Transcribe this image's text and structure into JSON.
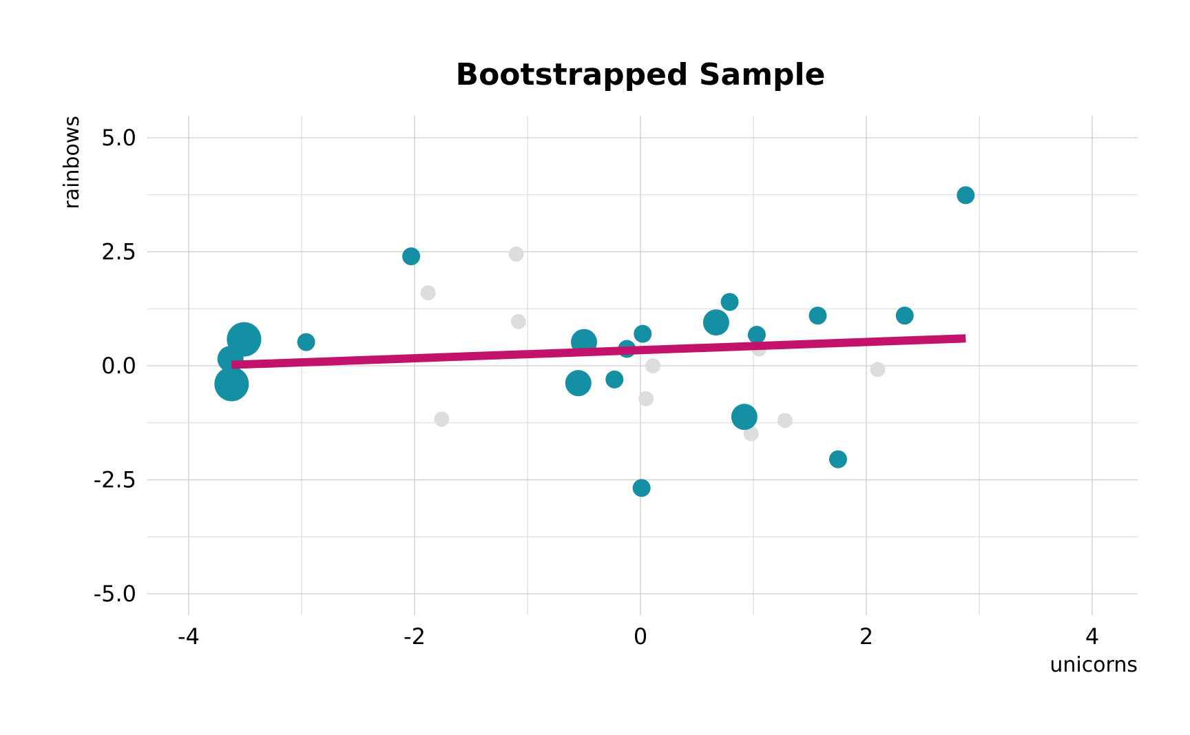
{
  "chart_data": {
    "type": "scatter",
    "title": "Bootstrapped Sample",
    "xlabel": "unicorns",
    "ylabel": "rainbows",
    "xlim": [
      -4.4,
      4.4
    ],
    "ylim": [
      -5.4,
      5.5
    ],
    "x_ticks": [
      -4,
      -2,
      0,
      2,
      4
    ],
    "x_tick_labels": [
      "-4",
      "-2",
      "0",
      "2",
      "4"
    ],
    "y_ticks": [
      -5,
      -2.5,
      0,
      2.5,
      5
    ],
    "y_tick_labels": [
      "-5.0",
      "-2.5",
      "0.0",
      "2.5",
      "5.0"
    ],
    "grid": true,
    "colors": {
      "sampled": "#148fa3",
      "unsampled": "#dddddd",
      "fit_line": "#c2126b",
      "grid": "#cccccc"
    },
    "series": [
      {
        "role": "not sampled",
        "points": [
          {
            "x": -1.1,
            "y": 2.45
          },
          {
            "x": -1.88,
            "y": 1.6
          },
          {
            "x": -1.08,
            "y": 0.97
          },
          {
            "x": -1.76,
            "y": -1.17
          },
          {
            "x": 0.11,
            "y": 0.0
          },
          {
            "x": 0.05,
            "y": -0.72
          },
          {
            "x": 1.05,
            "y": 0.37
          },
          {
            "x": 0.98,
            "y": -1.49
          },
          {
            "x": 1.28,
            "y": -1.2
          },
          {
            "x": 2.1,
            "y": -0.08
          }
        ]
      },
      {
        "role": "sampled",
        "points": [
          {
            "x": -3.62,
            "y": -0.4,
            "count": 3
          },
          {
            "x": -3.63,
            "y": 0.15,
            "count": 2
          },
          {
            "x": -3.51,
            "y": 0.58,
            "count": 3
          },
          {
            "x": -2.96,
            "y": 0.52,
            "count": 1
          },
          {
            "x": -2.03,
            "y": 2.4,
            "count": 1
          },
          {
            "x": -0.55,
            "y": -0.38,
            "count": 2
          },
          {
            "x": -0.5,
            "y": 0.52,
            "count": 2
          },
          {
            "x": -0.23,
            "y": -0.3,
            "count": 1
          },
          {
            "x": -0.12,
            "y": 0.37,
            "count": 1
          },
          {
            "x": 0.02,
            "y": 0.7,
            "count": 1
          },
          {
            "x": 0.01,
            "y": -2.68,
            "count": 1
          },
          {
            "x": 0.67,
            "y": 0.95,
            "count": 2
          },
          {
            "x": 0.79,
            "y": 1.4,
            "count": 1
          },
          {
            "x": 0.92,
            "y": -1.12,
            "count": 2
          },
          {
            "x": 1.03,
            "y": 0.68,
            "count": 1
          },
          {
            "x": 1.57,
            "y": 1.1,
            "count": 1
          },
          {
            "x": 1.75,
            "y": -2.05,
            "count": 1
          },
          {
            "x": 2.34,
            "y": 1.1,
            "count": 1
          },
          {
            "x": 2.88,
            "y": 3.74,
            "count": 1
          }
        ]
      }
    ],
    "fit_line": {
      "x": [
        -3.62,
        2.88
      ],
      "y": [
        0.02,
        0.6
      ]
    }
  }
}
